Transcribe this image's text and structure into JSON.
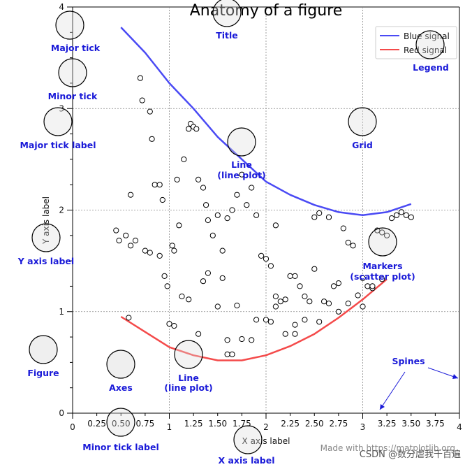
{
  "chart_data": {
    "type": "line",
    "title": "Anatomy of a figure",
    "xlabel": "X axis label",
    "ylabel": "Y axis label",
    "xlim": [
      0,
      4
    ],
    "ylim": [
      0,
      4
    ],
    "grid": true,
    "legend_placement": "top-right",
    "x_major_ticks": [
      0,
      1,
      2,
      3,
      4
    ],
    "x_major_tick_labels": [
      "0",
      "1",
      "2",
      "3",
      "4"
    ],
    "x_minor_ticks": [
      0.25,
      0.5,
      0.75,
      1.25,
      1.5,
      1.75,
      2.25,
      2.5,
      2.75,
      3.25,
      3.5,
      3.75
    ],
    "x_minor_tick_labels": [
      "0.25",
      "0.50",
      "0.75",
      "1.25",
      "1.50",
      "1.75",
      "2.25",
      "2.50",
      "2.75",
      "3.25",
      "3.50",
      "3.75"
    ],
    "y_major_ticks": [
      0,
      1,
      2,
      3,
      4
    ],
    "y_major_tick_labels": [
      "0",
      "1",
      "2",
      "3",
      "4"
    ],
    "series": [
      {
        "name": "Blue signal",
        "kind": "line",
        "color": "#4a4af4",
        "x": [
          0.5,
          0.75,
          1.0,
          1.25,
          1.5,
          1.75,
          2.0,
          2.25,
          2.5,
          2.75,
          3.0,
          3.25,
          3.5
        ],
        "y": [
          3.8,
          3.55,
          3.25,
          3.0,
          2.72,
          2.5,
          2.28,
          2.15,
          2.05,
          1.98,
          1.95,
          1.98,
          2.06
        ]
      },
      {
        "name": "Red signal",
        "kind": "line",
        "color": "#f44a4a",
        "x": [
          0.5,
          0.75,
          1.0,
          1.25,
          1.5,
          1.75,
          2.0,
          2.25,
          2.5,
          2.75,
          3.0,
          3.25
        ],
        "y": [
          0.95,
          0.8,
          0.65,
          0.57,
          0.52,
          0.52,
          0.57,
          0.66,
          0.78,
          0.94,
          1.12,
          1.32
        ]
      },
      {
        "name": "",
        "kind": "scatter",
        "color": "#000000",
        "x": [
          0.7,
          0.72,
          0.8,
          0.82,
          0.85,
          0.9,
          0.93,
          0.6,
          0.45,
          0.48,
          0.55,
          0.6,
          0.65,
          0.75,
          0.8,
          0.9,
          0.95,
          0.98,
          1.03,
          1.05,
          1.08,
          1.1,
          1.13,
          1.15,
          1.2,
          1.22,
          1.25,
          1.28,
          1.3,
          1.35,
          1.38,
          1.4,
          1.45,
          1.5,
          1.55,
          1.6,
          1.65,
          1.7,
          1.75,
          1.8,
          1.85,
          1.9,
          1.95,
          2.0,
          2.05,
          2.1,
          2.15,
          2.2,
          2.25,
          2.3,
          2.35,
          2.4,
          2.45,
          2.5,
          2.55,
          2.6,
          2.65,
          2.7,
          2.75,
          2.8,
          2.85,
          2.9,
          3.0,
          3.05,
          3.1,
          3.15,
          3.2,
          3.25,
          3.3,
          3.35,
          3.4,
          3.45,
          3.5,
          1.6,
          1.65,
          1.75,
          1.85,
          1.9,
          2.05,
          2.2,
          2.3,
          2.4,
          2.55,
          2.65,
          2.75,
          2.85,
          2.95,
          3.0,
          3.1,
          3.2,
          1.0,
          1.05,
          1.2,
          1.3,
          1.35,
          1.4,
          1.5,
          1.55,
          2.0,
          2.1,
          2.3,
          2.5,
          1.6,
          1.7,
          2.1,
          0.58
        ],
        "y": [
          3.3,
          3.08,
          2.97,
          2.7,
          2.25,
          2.25,
          2.1,
          2.15,
          1.8,
          1.7,
          1.75,
          1.65,
          1.7,
          1.6,
          1.58,
          1.55,
          1.35,
          1.25,
          1.65,
          1.6,
          2.3,
          1.85,
          1.15,
          2.5,
          2.8,
          2.85,
          2.82,
          2.8,
          2.3,
          2.22,
          2.05,
          1.9,
          1.75,
          1.95,
          1.6,
          1.92,
          2.0,
          2.15,
          2.35,
          2.05,
          2.22,
          1.95,
          1.55,
          1.52,
          1.45,
          1.15,
          1.1,
          1.12,
          1.35,
          1.35,
          1.25,
          1.15,
          1.1,
          1.93,
          1.97,
          1.1,
          1.93,
          1.25,
          1.28,
          1.82,
          1.68,
          1.65,
          1.33,
          1.25,
          1.23,
          1.8,
          1.78,
          1.75,
          1.92,
          1.95,
          1.98,
          1.95,
          1.93,
          0.58,
          0.58,
          0.73,
          0.72,
          0.92,
          0.9,
          0.78,
          0.78,
          0.92,
          0.9,
          1.08,
          1.0,
          1.08,
          1.16,
          1.05,
          1.25,
          1.32,
          0.88,
          0.86,
          1.12,
          0.78,
          1.3,
          1.38,
          1.05,
          1.33,
          0.92,
          1.05,
          0.87,
          1.42,
          0.72,
          1.06,
          1.85,
          0.94
        ]
      }
    ]
  },
  "legend": {
    "blue_label": "Blue signal",
    "red_label": "Red signal"
  },
  "annotations": {
    "major_tick": "Major tick",
    "minor_tick": "Minor tick",
    "major_tick_label": "Major tick label",
    "y_axis_label": "Y axis label",
    "figure": "Figure",
    "axes": "Axes",
    "title": "Title",
    "legend": "Legend",
    "grid": "Grid",
    "line_plot_1": "Line",
    "line_plot_1b": "(line plot)",
    "line_plot_2": "Line",
    "line_plot_2b": "(line plot)",
    "markers_1": "Markers",
    "markers_2": "(scatter plot)",
    "spines": "Spines",
    "minor_tick_label": "Minor tick label",
    "x_axis_label": "X axis label"
  },
  "watermark": {
    "made_with": "Made with https://matplotlib.org",
    "csdn": "CSDN @数分虐我千百遍"
  },
  "colors": {
    "annotation": "#1a1ad8",
    "blue_line": "#4a4af4",
    "red_line": "#f44a4a",
    "grid": "#888888"
  }
}
